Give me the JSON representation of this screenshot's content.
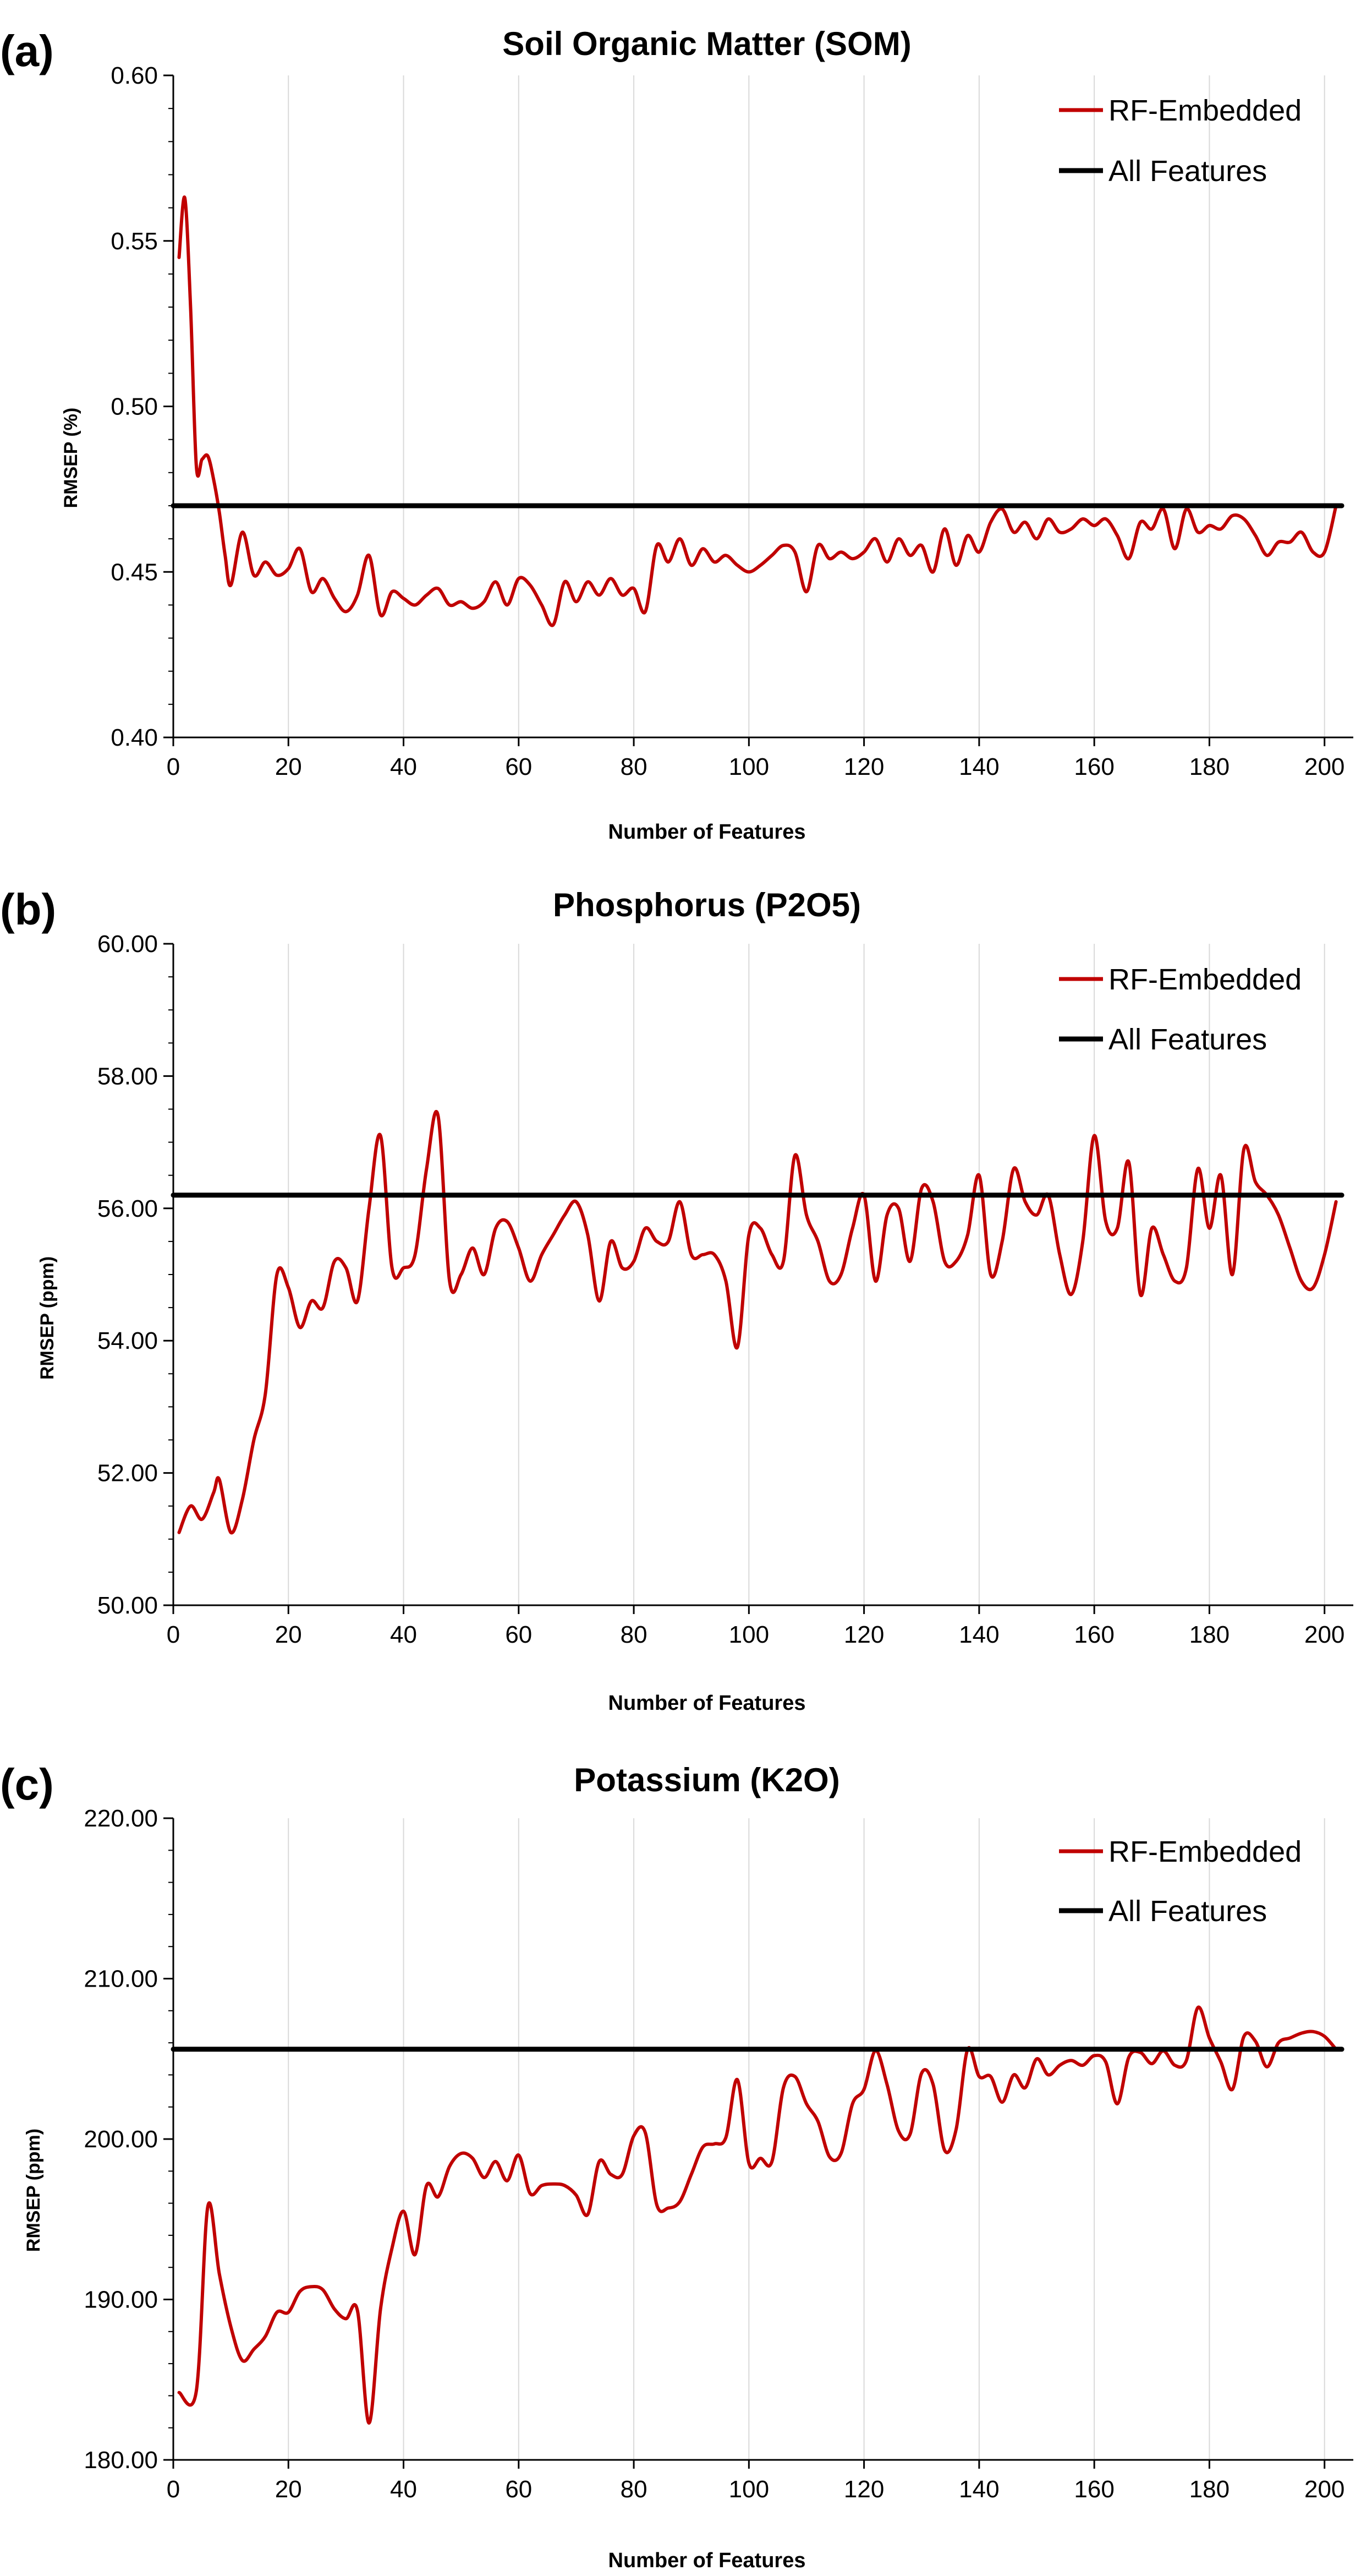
{
  "chart_data": [
    {
      "type": "line",
      "panel_label": "(a)",
      "title": "Soil Organic Matter (SOM)",
      "xlabel": "Number of Features",
      "ylabel": "RMSEP (%)",
      "xlim": [
        0,
        205
      ],
      "ylim": [
        0.4,
        0.6
      ],
      "xticks": [
        0,
        20,
        40,
        60,
        80,
        100,
        120,
        140,
        160,
        180,
        200
      ],
      "yticks": [
        0.4,
        0.45,
        0.5,
        0.55,
        0.6
      ],
      "ytick_labels": [
        "0.40",
        "0.45",
        "0.50",
        "0.55",
        "0.60"
      ],
      "y_minor_step": 0.01,
      "grid": true,
      "legend_position": "top-right",
      "series": [
        {
          "name": "RF-Embedded",
          "color": "#c00000",
          "x": [
            1,
            2,
            3,
            4,
            5,
            6,
            7,
            8,
            9,
            10,
            12,
            14,
            16,
            18,
            20,
            22,
            24,
            26,
            28,
            30,
            32,
            34,
            36,
            38,
            40,
            42,
            44,
            46,
            48,
            50,
            52,
            54,
            56,
            58,
            60,
            62,
            64,
            66,
            68,
            70,
            72,
            74,
            76,
            78,
            80,
            82,
            84,
            86,
            88,
            90,
            92,
            94,
            96,
            98,
            100,
            102,
            104,
            106,
            108,
            110,
            112,
            114,
            116,
            118,
            120,
            122,
            124,
            126,
            128,
            130,
            132,
            134,
            136,
            138,
            140,
            142,
            144,
            146,
            148,
            150,
            152,
            154,
            156,
            158,
            160,
            162,
            164,
            166,
            168,
            170,
            172,
            174,
            176,
            178,
            180,
            182,
            184,
            186,
            188,
            190,
            192,
            194,
            196,
            198,
            200,
            202
          ],
          "y": [
            0.545,
            0.563,
            0.53,
            0.482,
            0.484,
            0.485,
            0.478,
            0.468,
            0.455,
            0.446,
            0.462,
            0.449,
            0.453,
            0.449,
            0.451,
            0.457,
            0.444,
            0.448,
            0.442,
            0.438,
            0.443,
            0.455,
            0.437,
            0.444,
            0.442,
            0.44,
            0.443,
            0.445,
            0.44,
            0.441,
            0.439,
            0.441,
            0.447,
            0.44,
            0.448,
            0.446,
            0.44,
            0.434,
            0.447,
            0.441,
            0.447,
            0.443,
            0.448,
            0.443,
            0.445,
            0.438,
            0.458,
            0.453,
            0.46,
            0.452,
            0.457,
            0.453,
            0.455,
            0.452,
            0.45,
            0.452,
            0.455,
            0.458,
            0.456,
            0.444,
            0.458,
            0.454,
            0.456,
            0.454,
            0.456,
            0.46,
            0.453,
            0.46,
            0.455,
            0.458,
            0.45,
            0.463,
            0.452,
            0.461,
            0.456,
            0.465,
            0.469,
            0.462,
            0.465,
            0.46,
            0.466,
            0.462,
            0.463,
            0.466,
            0.464,
            0.466,
            0.461,
            0.454,
            0.465,
            0.463,
            0.469,
            0.457,
            0.469,
            0.462,
            0.464,
            0.463,
            0.467,
            0.466,
            0.461,
            0.455,
            0.459,
            0.459,
            0.462,
            0.456,
            0.456,
            0.47
          ]
        },
        {
          "name": "All Features",
          "color": "#000000",
          "x": [
            0,
            203
          ],
          "y": [
            0.47,
            0.47
          ]
        }
      ]
    },
    {
      "type": "line",
      "panel_label": "(b)",
      "title": "Phosphorus (P2O5)",
      "xlabel": "Number of Features",
      "ylabel": "RMSEP  (ppm)",
      "xlim": [
        0,
        205
      ],
      "ylim": [
        50,
        60
      ],
      "xticks": [
        0,
        20,
        40,
        60,
        80,
        100,
        120,
        140,
        160,
        180,
        200
      ],
      "yticks": [
        50,
        52,
        54,
        56,
        58,
        60
      ],
      "ytick_labels": [
        "50.00",
        "52.00",
        "54.00",
        "56.00",
        "58.00",
        "60.00"
      ],
      "y_minor_step": 0.5,
      "grid": true,
      "legend_position": "top-right",
      "series": [
        {
          "name": "RF-Embedded",
          "color": "#c00000",
          "x": [
            1,
            3,
            5,
            7,
            8,
            10,
            12,
            14,
            16,
            18,
            20,
            22,
            24,
            26,
            28,
            30,
            32,
            34,
            36,
            38,
            40,
            42,
            44,
            46,
            48,
            50,
            52,
            54,
            56,
            58,
            60,
            62,
            64,
            66,
            68,
            70,
            72,
            74,
            76,
            78,
            80,
            82,
            84,
            86,
            88,
            90,
            92,
            94,
            96,
            98,
            100,
            102,
            104,
            106,
            108,
            110,
            112,
            114,
            116,
            118,
            120,
            122,
            124,
            126,
            128,
            130,
            132,
            134,
            136,
            138,
            140,
            142,
            144,
            146,
            148,
            150,
            152,
            154,
            156,
            158,
            160,
            162,
            164,
            166,
            168,
            170,
            172,
            174,
            176,
            178,
            180,
            182,
            184,
            186,
            188,
            190,
            192,
            194,
            196,
            198,
            200,
            202
          ],
          "y": [
            51.1,
            51.5,
            51.3,
            51.7,
            51.9,
            51.1,
            51.6,
            52.5,
            53.2,
            55.0,
            54.8,
            54.2,
            54.6,
            54.5,
            55.2,
            55.1,
            54.6,
            56.0,
            57.1,
            55.1,
            55.1,
            55.3,
            56.6,
            57.4,
            54.9,
            55.0,
            55.4,
            55.0,
            55.7,
            55.8,
            55.4,
            54.9,
            55.3,
            55.6,
            55.9,
            56.1,
            55.6,
            54.6,
            55.5,
            55.1,
            55.2,
            55.7,
            55.5,
            55.5,
            56.1,
            55.3,
            55.3,
            55.3,
            54.9,
            53.9,
            55.6,
            55.7,
            55.3,
            55.2,
            56.8,
            55.9,
            55.5,
            54.9,
            55.0,
            55.7,
            56.2,
            54.9,
            55.9,
            56.0,
            55.2,
            56.3,
            56.1,
            55.2,
            55.2,
            55.6,
            56.5,
            55.0,
            55.5,
            56.6,
            56.1,
            55.9,
            56.2,
            55.3,
            54.7,
            55.5,
            57.1,
            55.8,
            55.7,
            56.7,
            54.7,
            55.7,
            55.3,
            54.9,
            55.1,
            56.6,
            55.7,
            56.5,
            55.0,
            56.9,
            56.4,
            56.2,
            55.9,
            55.4,
            54.9,
            54.8,
            55.3,
            56.1
          ]
        },
        {
          "name": "All Features",
          "color": "#000000",
          "x": [
            0,
            203
          ],
          "y": [
            56.2,
            56.2
          ]
        }
      ]
    },
    {
      "type": "line",
      "panel_label": "(c)",
      "title": "Potassium (K2O)",
      "xlabel": "Number of Features",
      "ylabel": "RMSEP  (ppm)",
      "xlim": [
        0,
        205
      ],
      "ylim": [
        180,
        220
      ],
      "xticks": [
        0,
        20,
        40,
        60,
        80,
        100,
        120,
        140,
        160,
        180,
        200
      ],
      "yticks": [
        180,
        190,
        200,
        210,
        220
      ],
      "ytick_labels": [
        "180.00",
        "190.00",
        "200.00",
        "210.00",
        "220.00"
      ],
      "y_minor_step": 2,
      "grid": true,
      "legend_position": "top-right",
      "series": [
        {
          "name": "RF-Embedded",
          "color": "#c00000",
          "x": [
            1,
            4,
            6,
            8,
            10,
            12,
            14,
            16,
            18,
            20,
            22,
            24,
            26,
            28,
            30,
            32,
            34,
            36,
            38,
            40,
            42,
            44,
            46,
            48,
            50,
            52,
            54,
            56,
            58,
            60,
            62,
            64,
            66,
            68,
            70,
            72,
            74,
            76,
            78,
            80,
            82,
            84,
            86,
            88,
            90,
            92,
            94,
            96,
            98,
            100,
            102,
            104,
            106,
            108,
            110,
            112,
            114,
            116,
            118,
            120,
            122,
            124,
            126,
            128,
            130,
            132,
            134,
            136,
            138,
            140,
            142,
            144,
            146,
            148,
            150,
            152,
            154,
            156,
            158,
            160,
            162,
            164,
            166,
            168,
            170,
            172,
            174,
            176,
            178,
            180,
            182,
            184,
            186,
            188,
            190,
            192,
            194,
            196,
            198,
            200,
            202
          ],
          "y": [
            184.2,
            184.3,
            195.8,
            191.6,
            188.3,
            186.2,
            186.9,
            187.7,
            189.2,
            189.2,
            190.5,
            190.8,
            190.6,
            189.4,
            188.8,
            189.3,
            182.3,
            189.4,
            193.2,
            195.5,
            192.8,
            197.1,
            196.4,
            198.3,
            199.1,
            198.8,
            197.6,
            198.6,
            197.4,
            199.0,
            196.6,
            197.1,
            197.2,
            197.1,
            196.5,
            195.3,
            198.6,
            197.8,
            197.8,
            200.2,
            200.4,
            195.9,
            195.7,
            196.1,
            197.8,
            199.5,
            199.7,
            200.1,
            203.7,
            198.5,
            198.8,
            198.6,
            203.2,
            203.9,
            202.2,
            201.1,
            198.9,
            199.1,
            202.2,
            203.1,
            205.5,
            203.4,
            200.5,
            200.3,
            204.1,
            203.4,
            199.3,
            200.6,
            205.6,
            203.9,
            203.9,
            202.3,
            204.0,
            203.2,
            205.0,
            204.0,
            204.6,
            204.9,
            204.6,
            205.2,
            204.8,
            202.2,
            205.1,
            205.4,
            204.7,
            205.5,
            204.6,
            204.9,
            208.2,
            206.3,
            204.8,
            203.1,
            206.4,
            206.1,
            204.5,
            206.0,
            206.3,
            206.6,
            206.7,
            206.4,
            205.6
          ]
        },
        {
          "name": "All Features",
          "color": "#000000",
          "x": [
            0,
            203
          ],
          "y": [
            205.6,
            205.6
          ]
        }
      ]
    }
  ]
}
